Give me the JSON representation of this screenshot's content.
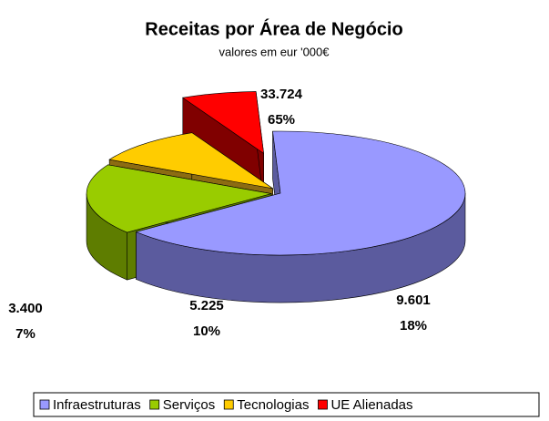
{
  "chart_data": {
    "type": "pie3d",
    "title": "Receitas por Área de Negócio",
    "subtitle": "valores em eur '000€",
    "categories": [
      "Infraestruturas",
      "Serviços",
      "Tecnologias",
      "UE Alienadas"
    ],
    "values": [
      33724,
      9601,
      5225,
      3400
    ],
    "value_labels": [
      "33.724",
      "9.601",
      "5.225",
      "3.400"
    ],
    "percent_labels": [
      "65%",
      "18%",
      "10%",
      "7%"
    ],
    "colors": [
      "#9999ff",
      "#99cc00",
      "#ffcc00",
      "#ff0000"
    ],
    "side_colors": [
      "#5b5b9e",
      "#5e7d00",
      "#8c6c12",
      "#800000"
    ],
    "legend": "bottom"
  }
}
